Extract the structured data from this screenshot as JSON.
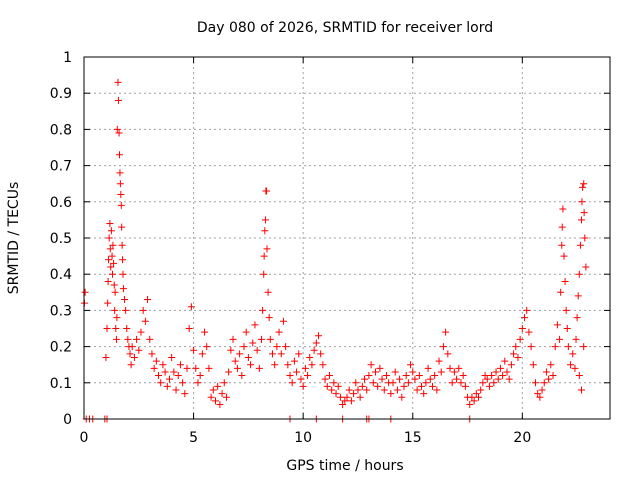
{
  "chart_data": {
    "type": "scatter",
    "title": "Day 080 of 2026, SRMTID for receiver lord",
    "xlabel": "GPS time / hours",
    "ylabel": "SRMTID / TECUs",
    "xlim": [
      0,
      24
    ],
    "ylim": [
      0,
      1
    ],
    "grid": true,
    "x_ticks": [
      "0",
      "5",
      "10",
      "15",
      "20"
    ],
    "y_ticks": [
      "0",
      "0.1",
      "0.2",
      "0.3",
      "0.4",
      "0.5",
      "0.6",
      "0.7",
      "0.8",
      "0.9",
      "1"
    ],
    "marker": "plus",
    "color": "#ff0000",
    "series": [
      {
        "name": "SRMTID",
        "points": [
          [
            0.02,
            0.32
          ],
          [
            0.05,
            0.35
          ],
          [
            0.1,
            0.0
          ],
          [
            0.25,
            0.0
          ],
          [
            0.4,
            0.0
          ],
          [
            0.95,
            0.0
          ],
          [
            1.05,
            0.0
          ],
          [
            1.0,
            0.17
          ],
          [
            1.05,
            0.25
          ],
          [
            1.08,
            0.32
          ],
          [
            1.1,
            0.38
          ],
          [
            1.12,
            0.44
          ],
          [
            1.15,
            0.5
          ],
          [
            1.18,
            0.54
          ],
          [
            1.2,
            0.47
          ],
          [
            1.22,
            0.42
          ],
          [
            1.25,
            0.52
          ],
          [
            1.28,
            0.45
          ],
          [
            1.3,
            0.4
          ],
          [
            1.32,
            0.48
          ],
          [
            1.35,
            0.43
          ],
          [
            1.38,
            0.37
          ],
          [
            1.4,
            0.3
          ],
          [
            1.42,
            0.35
          ],
          [
            1.45,
            0.25
          ],
          [
            1.48,
            0.22
          ],
          [
            1.5,
            0.28
          ],
          [
            1.52,
            0.8
          ],
          [
            1.55,
            0.93
          ],
          [
            1.57,
            0.88
          ],
          [
            1.6,
            0.79
          ],
          [
            1.62,
            0.73
          ],
          [
            1.64,
            0.68
          ],
          [
            1.66,
            0.65
          ],
          [
            1.68,
            0.62
          ],
          [
            1.7,
            0.59
          ],
          [
            1.72,
            0.53
          ],
          [
            1.74,
            0.48
          ],
          [
            1.76,
            0.44
          ],
          [
            1.78,
            0.4
          ],
          [
            1.8,
            0.36
          ],
          [
            1.85,
            0.33
          ],
          [
            1.9,
            0.3
          ],
          [
            1.95,
            0.25
          ],
          [
            2.0,
            0.22
          ],
          [
            2.05,
            0.2
          ],
          [
            2.1,
            0.18
          ],
          [
            2.15,
            0.15
          ],
          [
            2.2,
            0.2
          ],
          [
            2.3,
            0.17
          ],
          [
            2.4,
            0.22
          ],
          [
            2.5,
            0.19
          ],
          [
            2.6,
            0.24
          ],
          [
            2.7,
            0.3
          ],
          [
            2.8,
            0.27
          ],
          [
            2.9,
            0.33
          ],
          [
            3.0,
            0.22
          ],
          [
            3.1,
            0.18
          ],
          [
            3.2,
            0.14
          ],
          [
            3.3,
            0.16
          ],
          [
            3.4,
            0.12
          ],
          [
            3.5,
            0.1
          ],
          [
            3.6,
            0.15
          ],
          [
            3.7,
            0.13
          ],
          [
            3.8,
            0.09
          ],
          [
            3.9,
            0.11
          ],
          [
            4.0,
            0.17
          ],
          [
            4.1,
            0.13
          ],
          [
            4.2,
            0.08
          ],
          [
            4.3,
            0.12
          ],
          [
            4.4,
            0.15
          ],
          [
            4.5,
            0.1
          ],
          [
            4.6,
            0.07
          ],
          [
            4.7,
            0.14
          ],
          [
            4.8,
            0.25
          ],
          [
            4.9,
            0.31
          ],
          [
            5.0,
            0.19
          ],
          [
            5.1,
            0.14
          ],
          [
            5.2,
            0.1
          ],
          [
            5.3,
            0.12
          ],
          [
            5.4,
            0.18
          ],
          [
            5.5,
            0.24
          ],
          [
            5.6,
            0.2
          ],
          [
            5.7,
            0.14
          ],
          [
            5.8,
            0.06
          ],
          [
            5.9,
            0.08
          ],
          [
            6.0,
            0.05
          ],
          [
            6.1,
            0.09
          ],
          [
            6.2,
            0.04
          ],
          [
            6.3,
            0.07
          ],
          [
            6.4,
            0.1
          ],
          [
            6.5,
            0.06
          ],
          [
            6.6,
            0.13
          ],
          [
            6.7,
            0.19
          ],
          [
            6.8,
            0.22
          ],
          [
            6.9,
            0.16
          ],
          [
            7.0,
            0.14
          ],
          [
            7.1,
            0.18
          ],
          [
            7.2,
            0.12
          ],
          [
            7.3,
            0.2
          ],
          [
            7.4,
            0.24
          ],
          [
            7.5,
            0.17
          ],
          [
            7.6,
            0.15
          ],
          [
            7.7,
            0.21
          ],
          [
            7.8,
            0.26
          ],
          [
            7.9,
            0.19
          ],
          [
            8.0,
            0.14
          ],
          [
            8.1,
            0.22
          ],
          [
            8.15,
            0.3
          ],
          [
            8.2,
            0.4
          ],
          [
            8.22,
            0.45
          ],
          [
            8.25,
            0.52
          ],
          [
            8.28,
            0.55
          ],
          [
            8.3,
            0.63
          ],
          [
            8.33,
            0.63
          ],
          [
            8.35,
            0.47
          ],
          [
            8.4,
            0.35
          ],
          [
            8.45,
            0.28
          ],
          [
            8.5,
            0.22
          ],
          [
            8.6,
            0.18
          ],
          [
            8.7,
            0.15
          ],
          [
            8.8,
            0.2
          ],
          [
            8.9,
            0.24
          ],
          [
            9.0,
            0.18
          ],
          [
            9.1,
            0.27
          ],
          [
            9.2,
            0.2
          ],
          [
            9.3,
            0.15
          ],
          [
            9.4,
            0.12
          ],
          [
            9.5,
            0.1
          ],
          [
            9.6,
            0.16
          ],
          [
            9.7,
            0.13
          ],
          [
            9.8,
            0.18
          ],
          [
            9.9,
            0.11
          ],
          [
            10.0,
            0.09
          ],
          [
            10.1,
            0.14
          ],
          [
            10.2,
            0.12
          ],
          [
            10.3,
            0.17
          ],
          [
            10.4,
            0.15
          ],
          [
            10.5,
            0.19
          ],
          [
            10.6,
            0.21
          ],
          [
            10.7,
            0.23
          ],
          [
            10.8,
            0.18
          ],
          [
            10.9,
            0.15
          ],
          [
            11.0,
            0.11
          ],
          [
            11.1,
            0.09
          ],
          [
            11.2,
            0.12
          ],
          [
            11.3,
            0.08
          ],
          [
            11.4,
            0.1
          ],
          [
            11.5,
            0.07
          ],
          [
            11.6,
            0.09
          ],
          [
            11.7,
            0.06
          ],
          [
            11.8,
            0.04
          ],
          [
            11.9,
            0.05
          ],
          [
            12.0,
            0.06
          ],
          [
            12.1,
            0.08
          ],
          [
            12.2,
            0.05
          ],
          [
            12.3,
            0.07
          ],
          [
            12.4,
            0.1
          ],
          [
            12.5,
            0.08
          ],
          [
            12.6,
            0.06
          ],
          [
            12.7,
            0.09
          ],
          [
            12.8,
            0.11
          ],
          [
            12.9,
            0.08
          ],
          [
            13.0,
            0.12
          ],
          [
            13.1,
            0.15
          ],
          [
            13.2,
            0.1
          ],
          [
            13.3,
            0.13
          ],
          [
            13.4,
            0.09
          ],
          [
            13.5,
            0.14
          ],
          [
            13.6,
            0.11
          ],
          [
            13.7,
            0.08
          ],
          [
            13.8,
            0.12
          ],
          [
            13.9,
            0.1
          ],
          [
            14.0,
            0.07
          ],
          [
            14.1,
            0.1
          ],
          [
            14.2,
            0.13
          ],
          [
            14.3,
            0.08
          ],
          [
            14.4,
            0.11
          ],
          [
            14.5,
            0.06
          ],
          [
            14.6,
            0.09
          ],
          [
            14.7,
            0.12
          ],
          [
            14.8,
            0.1
          ],
          [
            14.9,
            0.15
          ],
          [
            15.0,
            0.13
          ],
          [
            15.1,
            0.11
          ],
          [
            15.2,
            0.08
          ],
          [
            15.3,
            0.12
          ],
          [
            15.4,
            0.09
          ],
          [
            15.5,
            0.07
          ],
          [
            15.6,
            0.1
          ],
          [
            15.7,
            0.14
          ],
          [
            15.8,
            0.11
          ],
          [
            15.9,
            0.09
          ],
          [
            16.0,
            0.12
          ],
          [
            16.1,
            0.08
          ],
          [
            16.2,
            0.16
          ],
          [
            16.3,
            0.13
          ],
          [
            16.4,
            0.2
          ],
          [
            16.5,
            0.24
          ],
          [
            16.6,
            0.18
          ],
          [
            16.7,
            0.14
          ],
          [
            16.8,
            0.1
          ],
          [
            16.9,
            0.13
          ],
          [
            17.0,
            0.11
          ],
          [
            17.1,
            0.14
          ],
          [
            17.2,
            0.1
          ],
          [
            17.3,
            0.12
          ],
          [
            17.4,
            0.09
          ],
          [
            17.5,
            0.06
          ],
          [
            17.6,
            0.04
          ],
          [
            17.7,
            0.06
          ],
          [
            17.8,
            0.05
          ],
          [
            17.9,
            0.07
          ],
          [
            18.0,
            0.06
          ],
          [
            18.1,
            0.08
          ],
          [
            18.2,
            0.1
          ],
          [
            18.3,
            0.12
          ],
          [
            18.4,
            0.11
          ],
          [
            18.5,
            0.09
          ],
          [
            18.6,
            0.12
          ],
          [
            18.7,
            0.1
          ],
          [
            18.8,
            0.13
          ],
          [
            18.9,
            0.11
          ],
          [
            19.0,
            0.14
          ],
          [
            19.1,
            0.12
          ],
          [
            19.2,
            0.16
          ],
          [
            19.3,
            0.13
          ],
          [
            19.4,
            0.11
          ],
          [
            19.5,
            0.15
          ],
          [
            19.6,
            0.18
          ],
          [
            19.7,
            0.2
          ],
          [
            19.8,
            0.17
          ],
          [
            19.9,
            0.22
          ],
          [
            20.0,
            0.25
          ],
          [
            20.1,
            0.28
          ],
          [
            20.2,
            0.3
          ],
          [
            20.3,
            0.24
          ],
          [
            20.4,
            0.2
          ],
          [
            20.5,
            0.15
          ],
          [
            20.6,
            0.1
          ],
          [
            20.7,
            0.07
          ],
          [
            20.8,
            0.06
          ],
          [
            20.9,
            0.08
          ],
          [
            21.0,
            0.1
          ],
          [
            21.1,
            0.13
          ],
          [
            21.2,
            0.11
          ],
          [
            21.3,
            0.15
          ],
          [
            21.4,
            0.12
          ],
          [
            21.5,
            0.2
          ],
          [
            21.6,
            0.26
          ],
          [
            21.7,
            0.22
          ],
          [
            21.75,
            0.35
          ],
          [
            21.8,
            0.48
          ],
          [
            21.82,
            0.53
          ],
          [
            21.85,
            0.58
          ],
          [
            21.9,
            0.45
          ],
          [
            21.95,
            0.38
          ],
          [
            22.0,
            0.3
          ],
          [
            22.05,
            0.25
          ],
          [
            22.1,
            0.2
          ],
          [
            22.2,
            0.15
          ],
          [
            22.3,
            0.18
          ],
          [
            22.4,
            0.14
          ],
          [
            22.45,
            0.22
          ],
          [
            22.5,
            0.28
          ],
          [
            22.55,
            0.34
          ],
          [
            22.6,
            0.4
          ],
          [
            22.65,
            0.48
          ],
          [
            22.7,
            0.55
          ],
          [
            22.72,
            0.6
          ],
          [
            22.75,
            0.64
          ],
          [
            22.8,
            0.65
          ],
          [
            22.82,
            0.57
          ],
          [
            22.85,
            0.5
          ],
          [
            22.9,
            0.42
          ],
          [
            22.6,
            0.12
          ],
          [
            22.7,
            0.08
          ],
          [
            22.8,
            0.2
          ],
          [
            9.4,
            0.0
          ],
          [
            10.6,
            0.0
          ],
          [
            11.8,
            0.0
          ],
          [
            12.9,
            0.0
          ],
          [
            13.0,
            0.0
          ],
          [
            14.0,
            0.0
          ],
          [
            17.6,
            0.0
          ]
        ]
      }
    ]
  }
}
